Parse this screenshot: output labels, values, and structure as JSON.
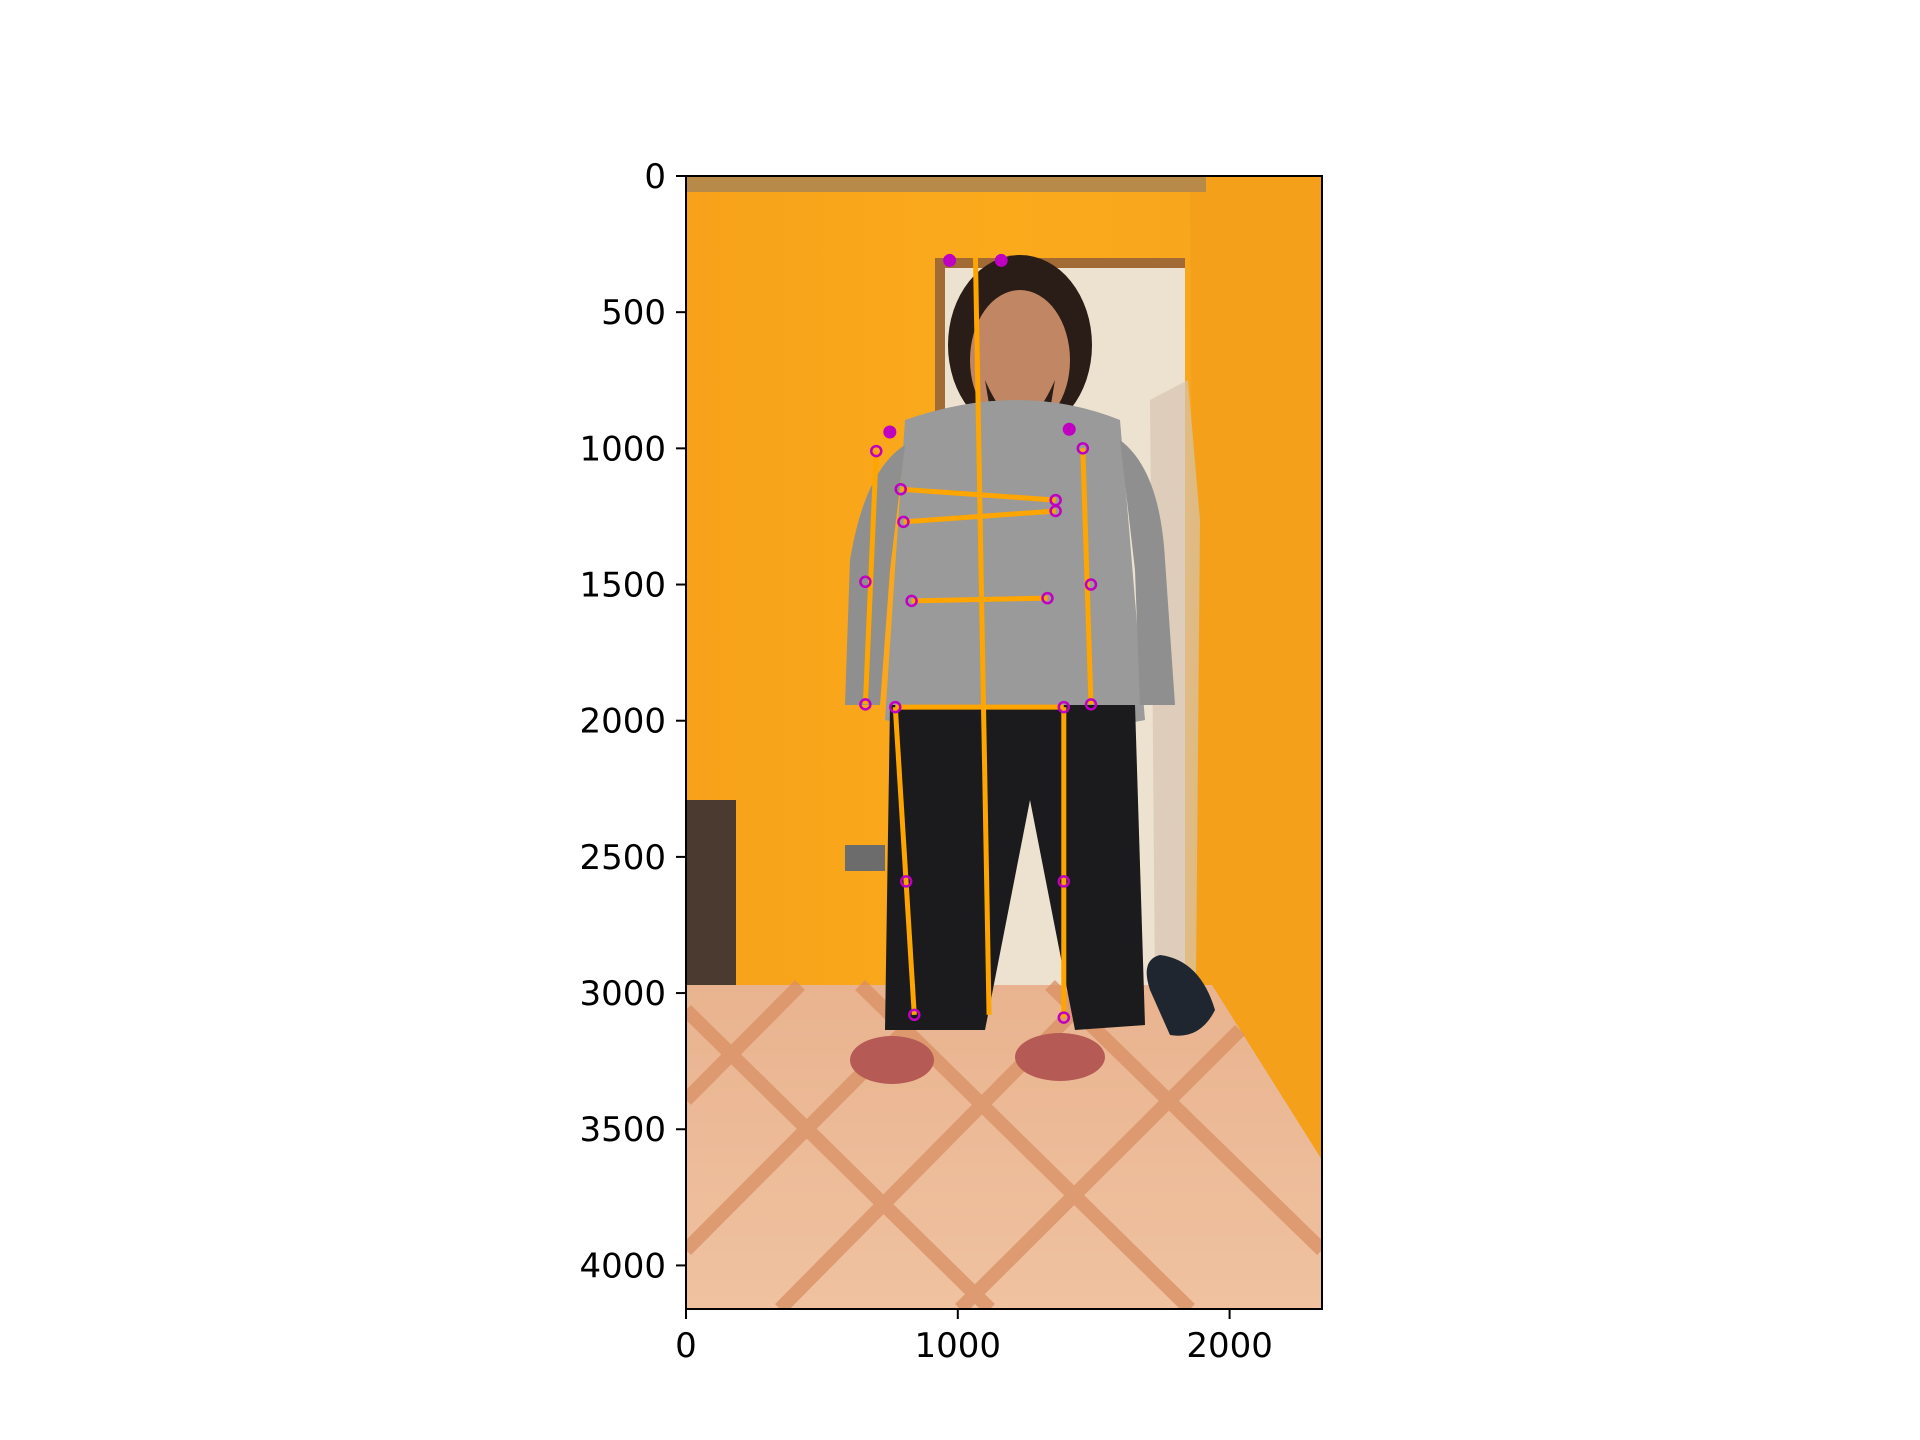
{
  "chart_data": {
    "type": "scatter",
    "title": "",
    "xlabel": "",
    "ylabel": "",
    "xlim": [
      0,
      2340
    ],
    "ylim": [
      4160,
      0
    ],
    "y_inverted": true,
    "grid": false,
    "x_ticks": [
      0,
      1000,
      2000
    ],
    "x_tick_labels": [
      "0",
      "1000",
      "2000"
    ],
    "y_ticks": [
      0,
      500,
      1000,
      1500,
      2000,
      2500,
      3000,
      3500,
      4000
    ],
    "y_tick_labels": [
      "0",
      "500",
      "1000",
      "1500",
      "2000",
      "2500",
      "3000",
      "3500",
      "4000"
    ],
    "background_image": "photograph of a bearded man in a grey hoodie and black pants standing in an orange room with a white door and tiled floor",
    "keypoints": {
      "color": "#c000c0",
      "points": [
        {
          "x": 970,
          "y": 310,
          "filled": true
        },
        {
          "x": 1160,
          "y": 310,
          "filled": true
        },
        {
          "x": 750,
          "y": 940,
          "filled": true
        },
        {
          "x": 1410,
          "y": 930,
          "filled": true
        },
        {
          "x": 700,
          "y": 1010,
          "filled": false
        },
        {
          "x": 1460,
          "y": 1000,
          "filled": false
        },
        {
          "x": 790,
          "y": 1150,
          "filled": false
        },
        {
          "x": 1360,
          "y": 1190,
          "filled": false
        },
        {
          "x": 800,
          "y": 1270,
          "filled": false
        },
        {
          "x": 1360,
          "y": 1230,
          "filled": false
        },
        {
          "x": 660,
          "y": 1490,
          "filled": false
        },
        {
          "x": 1490,
          "y": 1500,
          "filled": false
        },
        {
          "x": 830,
          "y": 1560,
          "filled": false
        },
        {
          "x": 1330,
          "y": 1550,
          "filled": false
        },
        {
          "x": 660,
          "y": 1940,
          "filled": false
        },
        {
          "x": 1490,
          "y": 1940,
          "filled": false
        },
        {
          "x": 770,
          "y": 1950,
          "filled": false
        },
        {
          "x": 1390,
          "y": 1950,
          "filled": false
        },
        {
          "x": 810,
          "y": 2590,
          "filled": false
        },
        {
          "x": 1390,
          "y": 2590,
          "filled": false
        },
        {
          "x": 840,
          "y": 3080,
          "filled": false
        },
        {
          "x": 1390,
          "y": 3090,
          "filled": false
        }
      ]
    },
    "skeleton": {
      "color": "#ffa500",
      "segments": [
        [
          1065,
          300,
          1115,
          3080
        ],
        [
          700,
          1010,
          660,
          1940
        ],
        [
          1460,
          1000,
          1490,
          1940
        ],
        [
          790,
          1150,
          1360,
          1190
        ],
        [
          800,
          1270,
          1360,
          1230
        ],
        [
          830,
          1560,
          1330,
          1550
        ],
        [
          770,
          1950,
          1390,
          1950
        ],
        [
          770,
          1950,
          840,
          3080
        ],
        [
          1390,
          1950,
          1390,
          3090
        ]
      ]
    }
  }
}
